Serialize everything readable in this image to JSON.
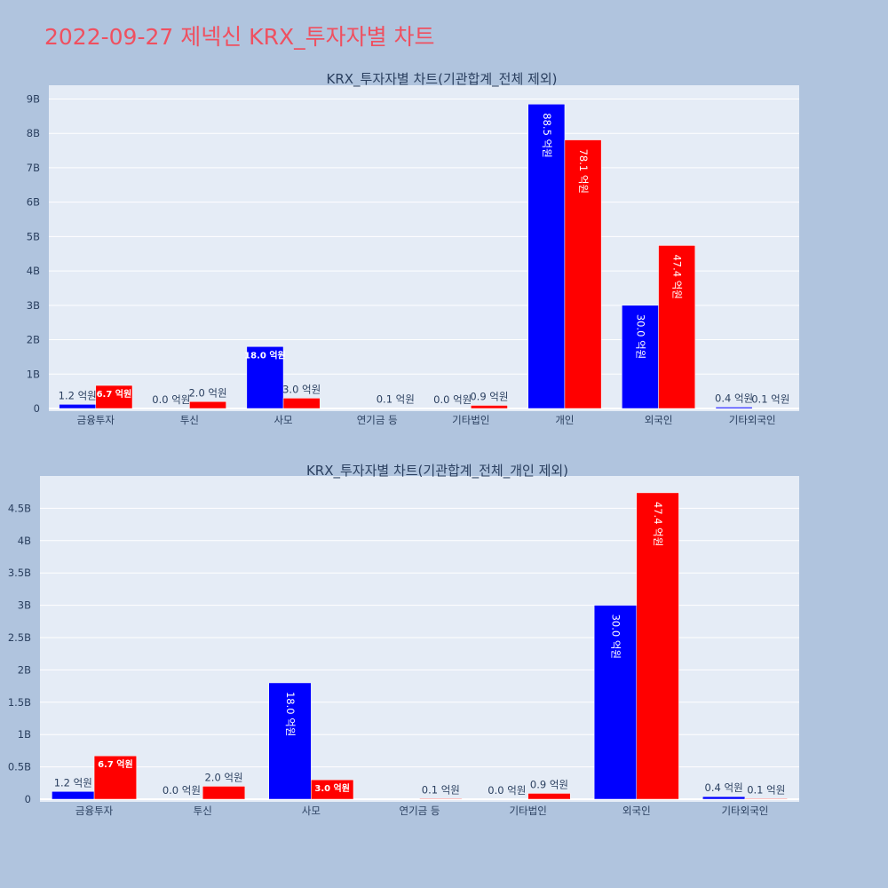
{
  "page": {
    "title": "2022-09-27 제넥신 KRX_투자자별 차트"
  },
  "colors": {
    "buy": "#0000ff",
    "sell": "#ff0000",
    "plot_bg": "#e5ecf6",
    "page_bg": "#b0c4de",
    "title": "#ef5060"
  },
  "chart_data": [
    {
      "type": "bar",
      "title": "KRX_투자자별 차트(기관합계_전체 제외)",
      "categories": [
        "금융투자",
        "투신",
        "사모",
        "연기금 등",
        "기타법인",
        "개인",
        "외국인",
        "기타외국인"
      ],
      "series": [
        {
          "values": [
            120000000,
            0,
            1800000000,
            0,
            0,
            8850000000,
            3000000000,
            40000000
          ],
          "labels": [
            "1.2 억원",
            "0.0 억원",
            "18.0 억원",
            "",
            "0.0 억원",
            "88.5 억원",
            "30.0 억원",
            "0.4 억원"
          ]
        },
        {
          "values": [
            670000000,
            200000000,
            300000000,
            10000000,
            90000000,
            7810000000,
            4740000000,
            10000000
          ],
          "labels": [
            "6.7 억원",
            "2.0 억원",
            "3.0 억원",
            "0.1 억원",
            "0.9 억원",
            "78.1 억원",
            "47.4 억원",
            "0.1 억원"
          ]
        }
      ],
      "yticks": [
        0,
        1000000000,
        2000000000,
        3000000000,
        4000000000,
        5000000000,
        6000000000,
        7000000000,
        8000000000,
        9000000000
      ],
      "ytick_labels": [
        "0",
        "1B",
        "2B",
        "3B",
        "4B",
        "5B",
        "6B",
        "7B",
        "8B",
        "9B"
      ],
      "ylim": [
        0,
        9400000000
      ],
      "grid": true
    },
    {
      "type": "bar",
      "title": "KRX_투자자별 차트(기관합계_전체_개인 제외)",
      "categories": [
        "금융투자",
        "투신",
        "사모",
        "연기금 등",
        "기타법인",
        "외국인",
        "기타외국인"
      ],
      "series": [
        {
          "values": [
            120000000,
            0,
            1800000000,
            0,
            0,
            3000000000,
            40000000
          ],
          "labels": [
            "1.2 억원",
            "0.0 억원",
            "18.0 억원",
            "",
            "0.0 억원",
            "30.0 억원",
            "0.4 억원"
          ]
        },
        {
          "values": [
            670000000,
            200000000,
            300000000,
            10000000,
            90000000,
            4740000000,
            10000000
          ],
          "labels": [
            "6.7 억원",
            "2.0 억원",
            "3.0 억원",
            "0.1 억원",
            "0.9 억원",
            "47.4 억원",
            "0.1 억원"
          ]
        }
      ],
      "yticks": [
        0,
        500000000,
        1000000000,
        1500000000,
        2000000000,
        2500000000,
        3000000000,
        3500000000,
        4000000000,
        4500000000
      ],
      "ytick_labels": [
        "0",
        "0.5B",
        "1B",
        "1.5B",
        "2B",
        "2.5B",
        "3B",
        "3.5B",
        "4B",
        "4.5B"
      ],
      "ylim": [
        0,
        5000000000
      ],
      "grid": true
    }
  ]
}
